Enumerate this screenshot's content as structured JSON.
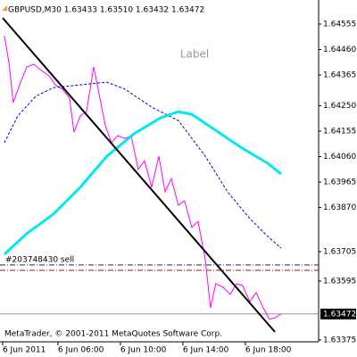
{
  "chart_data": {
    "type": "line",
    "title": "GBPUSD,M30  1.63433 1.63510 1.63432 1.63472",
    "annotation": "Label",
    "footer": "MetaTrader, © 2001-2011 MetaQuotes Software Corp.",
    "xlim": [
      2.29,
      22.69
    ],
    "xticks": [
      {
        "value": 2.46,
        "label": "6 Jun 2011"
      },
      {
        "value": 6,
        "label": "6 Jun 06:00"
      },
      {
        "value": 10,
        "label": "6 Jun 10:00"
      },
      {
        "value": 14,
        "label": "6 Jun 14:00"
      },
      {
        "value": 18,
        "label": "6 Jun 18:00"
      }
    ],
    "ylim": [
      1.63368,
      1.64645
    ],
    "yticks": [
      1.64555,
      {
        "value": 1.6446,
        "label": "1.64460"
      },
      1.64365,
      {
        "value": 1.6425,
        "label": "1.64250"
      },
      1.64155,
      {
        "value": 1.6406,
        "label": "1.64060"
      },
      1.63965,
      {
        "value": 1.6387,
        "label": "1.63870"
      },
      1.63705,
      1.63595,
      1.63375
    ],
    "series": [
      {
        "color": "#ff00ff",
        "width": 1,
        "style": "solid",
        "x": [
          2.57,
          2.86,
          3.14,
          3.54,
          4.0,
          4.46,
          4.86,
          5.43,
          5.83,
          6.29,
          6.74,
          7.03,
          7.43,
          7.83,
          8.29,
          8.69,
          9.03,
          9.43,
          9.83,
          10.29,
          10.69,
          11.14,
          11.54,
          12.0,
          12.46,
          12.86,
          13.26,
          13.71,
          14.11,
          14.57,
          14.97,
          15.43,
          15.77,
          16.11,
          16.57,
          17.03,
          17.43,
          17.83,
          18.29,
          18.69,
          19.14,
          19.54,
          19.89,
          20.29
        ],
        "values": [
          1.64512,
          1.64412,
          1.64262,
          1.64328,
          1.64395,
          1.64405,
          1.64385,
          1.64362,
          1.64328,
          1.64312,
          1.64278,
          1.64152,
          1.64212,
          1.64228,
          1.64395,
          1.64278,
          1.64178,
          1.64112,
          1.64138,
          1.64128,
          1.64138,
          1.64012,
          1.64045,
          1.63945,
          1.64062,
          1.63928,
          1.63978,
          1.63878,
          1.63895,
          1.63795,
          1.63818,
          1.63678,
          1.63495,
          1.63585,
          1.63572,
          1.63545,
          1.63585,
          1.63578,
          1.63518,
          1.63552,
          1.63495,
          1.63452,
          1.63458,
          1.63472
        ]
      },
      {
        "color": "#0000cc",
        "width": 1,
        "style": "dashed",
        "x": [
          2.57,
          3.43,
          4.57,
          5.71,
          7.43,
          9.14,
          10.29,
          12.0,
          13.71,
          15.43,
          16.86,
          18.29,
          19.43,
          20.29
        ],
        "values": [
          1.64112,
          1.64212,
          1.64285,
          1.64318,
          1.64328,
          1.64338,
          1.64312,
          1.64245,
          1.64195,
          1.64062,
          1.63928,
          1.63828,
          1.63762,
          1.63718
        ]
      },
      {
        "color": "#00e8f0",
        "width": 3,
        "style": "solid",
        "x": [
          2.57,
          4.0,
          5.71,
          7.43,
          9.14,
          10.86,
          12.57,
          13.71,
          14.57,
          16.0,
          17.71,
          19.43,
          20.29
        ],
        "values": [
          1.63695,
          1.63772,
          1.63845,
          1.63945,
          1.64062,
          1.64145,
          1.64205,
          1.64228,
          1.64218,
          1.64162,
          1.64095,
          1.64035,
          1.63995
        ]
      },
      {
        "color": "#000000",
        "width": 2,
        "style": "solid",
        "x": [
          2.46,
          19.89
        ],
        "values": [
          1.64578,
          1.63405
        ]
      }
    ],
    "hlines": [
      {
        "value": 1.63655,
        "color": "#3a1f6a",
        "label": "#203748430 sell"
      },
      {
        "value": 1.63635,
        "color": "#8b1a1a"
      }
    ],
    "current_price": 1.63472,
    "current_color": "#8899aa"
  }
}
